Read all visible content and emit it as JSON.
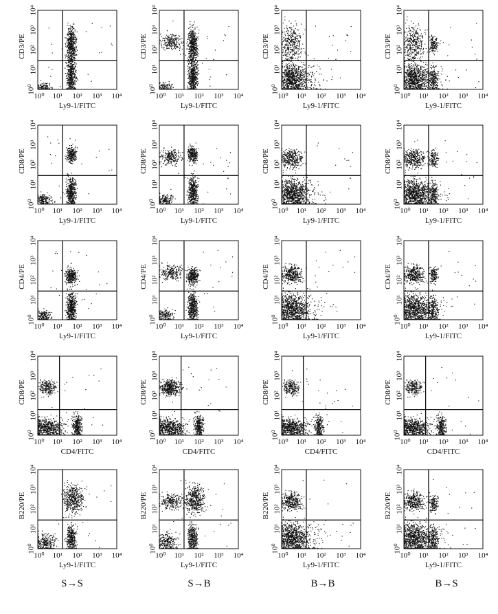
{
  "figure": {
    "tick_labels": [
      "10⁰",
      "10¹",
      "10²",
      "10³",
      "10⁴"
    ],
    "rows": [
      {
        "ylabel": "CD3/PE",
        "xlabel": "Ly9-1/FITC"
      },
      {
        "ylabel": "CD8/PE",
        "xlabel": "Ly9-1/FITC"
      },
      {
        "ylabel": "CD4/PE",
        "xlabel": "Ly9-1/FITC"
      },
      {
        "ylabel": "CD8/PE",
        "xlabel": "CD4/FITC"
      },
      {
        "ylabel": "B220/PE",
        "xlabel": "Ly9-1/FITC"
      }
    ],
    "columns": [
      "S→S",
      "S→B",
      "B→B",
      "B→S"
    ]
  }
}
